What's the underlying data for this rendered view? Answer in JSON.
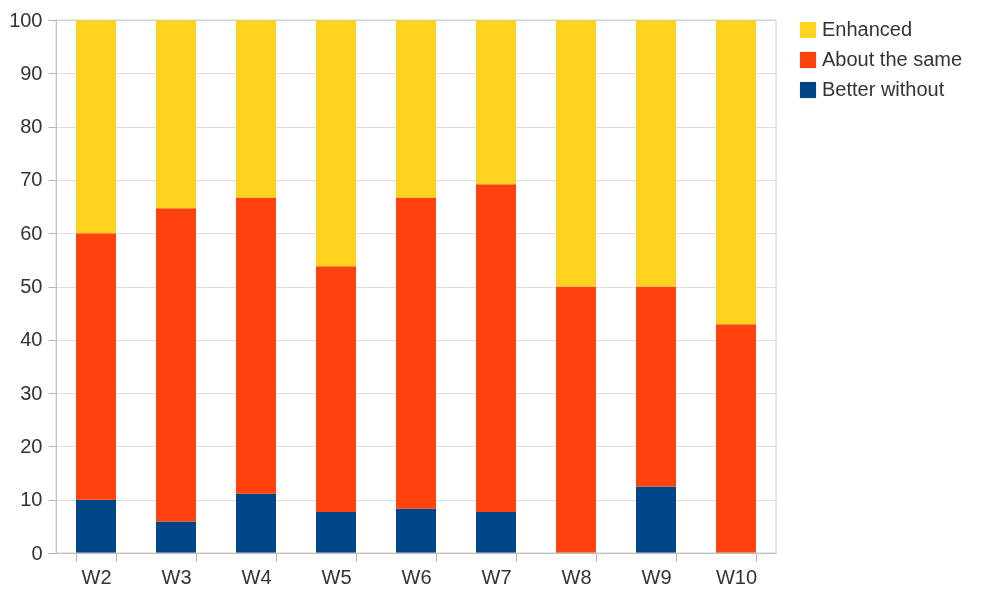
{
  "chart_data": {
    "type": "bar",
    "stacked": true,
    "categories": [
      "W2",
      "W3",
      "W4",
      "W5",
      "W6",
      "W7",
      "W8",
      "W9",
      "W10"
    ],
    "series": [
      {
        "name": "Better without",
        "color": "#004586",
        "values": [
          10,
          5.9,
          11.1,
          7.7,
          8.3,
          7.7,
          0,
          12.5,
          0
        ]
      },
      {
        "name": "About the same",
        "color": "#ff420e",
        "values": [
          50,
          58.8,
          55.6,
          46.1,
          58.4,
          61.5,
          50,
          37.5,
          42.9
        ]
      },
      {
        "name": "Enhanced",
        "color": "#ffd320",
        "values": [
          40,
          35.3,
          33.3,
          46.2,
          33.3,
          30.8,
          50,
          50,
          57.1
        ]
      }
    ],
    "ylim": [
      0,
      100
    ],
    "yticks": [
      0,
      10,
      20,
      30,
      40,
      50,
      60,
      70,
      80,
      90,
      100
    ],
    "grid": "y",
    "legend": "right"
  }
}
